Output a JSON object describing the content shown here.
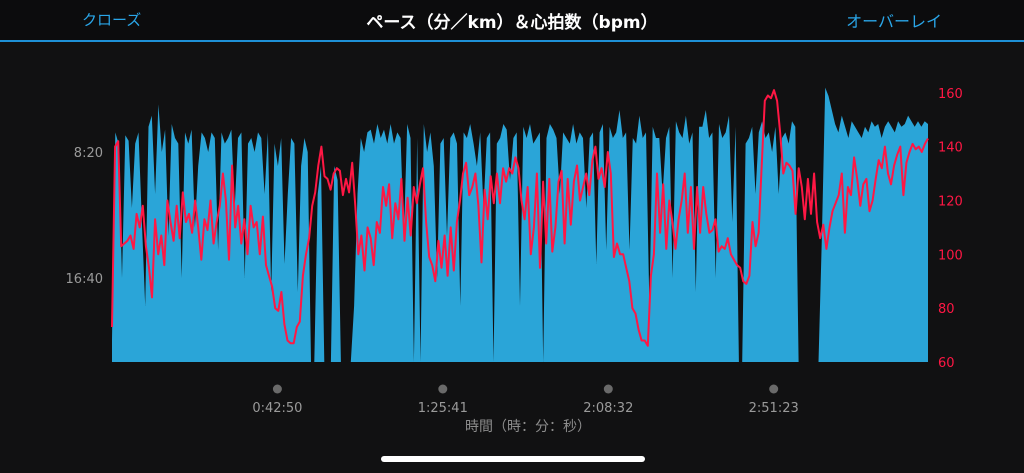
{
  "header": {
    "close_label": "クローズ",
    "title": "ペース（分／km）＆心拍数（bpm）",
    "overlay_label": "オーバーレイ"
  },
  "colors": {
    "pace_fill": "#2aa5d8",
    "heart_rate_line": "#ff1744",
    "accent": "#1e90d6"
  },
  "chart_data": {
    "type": "area",
    "xlabel": "時間（時：分：秒）",
    "x_ticks": [
      "0:42:50",
      "1:25:41",
      "2:08:32",
      "2:51:23"
    ],
    "x_tick_seconds": [
      2570,
      5141,
      7712,
      10283
    ],
    "x_range": [
      0,
      12680
    ],
    "grid": false,
    "y_left": {
      "ticks": [
        "8:20",
        "16:40"
      ],
      "tick_positions": [
        0.75,
        0.3
      ],
      "inverted": true
    },
    "y_right": {
      "ticks": [
        60,
        80,
        100,
        120,
        140,
        160
      ],
      "range": [
        60,
        164
      ]
    },
    "series": [
      {
        "name": "",
        "axis": "left",
        "type": "area",
        "levels": [
          0.08,
          0.82,
          0.78,
          0.3,
          0.81,
          0.79,
          0.55,
          0.78,
          0.82,
          0.5,
          0.2,
          0.84,
          0.88,
          0.6,
          0.92,
          0.75,
          0.83,
          0.45,
          0.85,
          0.8,
          0.78,
          0.3,
          0.82,
          0.78,
          0.83,
          0.48,
          0.7,
          0.82,
          0.8,
          0.75,
          0.82,
          0.8,
          0.4,
          0.82,
          0.78,
          0.8,
          0.83,
          0.55,
          0.8,
          0.82,
          0.3,
          0.78,
          0.8,
          0.75,
          0.82,
          0.8,
          0.6,
          0.82,
          0.25,
          0.78,
          0.7,
          0.8,
          0.35,
          0.6,
          0.8,
          0.78,
          0.25,
          0.7,
          0.8,
          0.75,
          0.0,
          0.0,
          0.6,
          0.7,
          0.0,
          0.0,
          0.0,
          0.7,
          0.65,
          0.0,
          0.0,
          0.0,
          0.0,
          0.2,
          0.6,
          0.8,
          0.75,
          0.82,
          0.83,
          0.78,
          0.85,
          0.8,
          0.83,
          0.78,
          0.85,
          0.78,
          0.82,
          0.8,
          0.45,
          0.85,
          0.8,
          0.0,
          0.8,
          0.0,
          0.85,
          0.75,
          0.82,
          0.7,
          0.3,
          0.78,
          0.8,
          0.45,
          0.8,
          0.82,
          0.78,
          0.2,
          0.82,
          0.8,
          0.85,
          0.78,
          0.7,
          0.82,
          0.55,
          0.8,
          0.82,
          0.0,
          0.78,
          0.8,
          0.85,
          0.83,
          0.65,
          0.8,
          0.82,
          0.2,
          0.84,
          0.8,
          0.85,
          0.78,
          0.8,
          0.82,
          0.0,
          0.8,
          0.85,
          0.83,
          0.8,
          0.6,
          0.82,
          0.8,
          0.78,
          0.85,
          0.78,
          0.82,
          0.8,
          0.55,
          0.8,
          0.82,
          0.35,
          0.82,
          0.85,
          0.4,
          0.84,
          0.8,
          0.82,
          0.9,
          0.8,
          0.82,
          0.4,
          0.8,
          0.78,
          0.88,
          0.8,
          0.82,
          0.2,
          0.84,
          0.8,
          0.8,
          0.6,
          0.8,
          0.84,
          0.3,
          0.86,
          0.82,
          0.8,
          0.88,
          0.78,
          0.82,
          0.25,
          0.84,
          0.84,
          0.9,
          0.8,
          0.82,
          0.3,
          0.85,
          0.8,
          0.82,
          0.88,
          0.5,
          0.84,
          0.0,
          0.0,
          0.78,
          0.8,
          0.84,
          0.6,
          0.82,
          0.86,
          0.8,
          0.82,
          0.75,
          0.84,
          0.6,
          0.8,
          0.82,
          0.78,
          0.86,
          0.84,
          0.0,
          0.0,
          0.0,
          0.0,
          0.0,
          0.0,
          0.0,
          0.45,
          0.98,
          0.95,
          0.9,
          0.85,
          0.82,
          0.88,
          0.84,
          0.8,
          0.86,
          0.84,
          0.82,
          0.8,
          0.84,
          0.82,
          0.86,
          0.84,
          0.85,
          0.8,
          0.84,
          0.86,
          0.84,
          0.82,
          0.86,
          0.84,
          0.85,
          0.88,
          0.86,
          0.84,
          0.86,
          0.84,
          0.86,
          0.85
        ]
      },
      {
        "name": "",
        "axis": "right",
        "type": "line",
        "values": [
          73,
          140,
          142,
          103,
          104,
          105,
          107,
          102,
          115,
          110,
          118,
          103,
          95,
          84,
          113,
          100,
          107,
          96,
          120,
          112,
          105,
          118,
          106,
          123,
          112,
          115,
          108,
          120,
          110,
          98,
          113,
          109,
          120,
          104,
          112,
          118,
          130,
          120,
          98,
          133,
          110,
          118,
          104,
          113,
          100,
          118,
          110,
          112,
          100,
          114,
          96,
          92,
          88,
          80,
          79,
          86,
          74,
          68,
          67,
          67,
          73,
          75,
          92,
          100,
          106,
          118,
          123,
          133,
          140,
          129,
          128,
          124,
          130,
          132,
          131,
          122,
          128,
          123,
          134,
          118,
          100,
          107,
          94,
          110,
          106,
          96,
          112,
          108,
          125,
          118,
          126,
          106,
          119,
          113,
          128,
          105,
          121,
          107,
          125,
          119,
          126,
          132,
          112,
          99,
          96,
          90,
          105,
          95,
          107,
          92,
          110,
          94,
          112,
          120,
          130,
          134,
          122,
          125,
          130,
          118,
          97,
          124,
          113,
          129,
          119,
          130,
          119,
          132,
          127,
          132,
          130,
          136,
          132,
          120,
          113,
          125,
          100,
          110,
          130,
          95,
          127,
          104,
          128,
          101,
          110,
          127,
          131,
          104,
          128,
          111,
          127,
          133,
          120,
          125,
          130,
          122,
          135,
          140,
          128,
          132,
          125,
          138,
          130,
          99,
          104,
          100,
          100,
          95,
          90,
          80,
          78,
          72,
          68,
          68,
          66,
          92,
          100,
          130,
          108,
          126,
          102,
          120,
          112,
          102,
          113,
          120,
          130,
          108,
          125,
          102,
          125,
          108,
          125,
          115,
          108,
          109,
          113,
          101,
          103,
          102,
          106,
          100,
          98,
          96,
          95,
          90,
          89,
          92,
          112,
          103,
          108,
          133,
          157,
          159,
          158,
          161,
          157,
          145,
          130,
          134,
          133,
          131,
          115,
          132,
          125,
          113,
          128,
          115,
          130,
          112,
          106,
          111,
          102,
          110,
          116,
          119,
          122,
          130,
          108,
          125,
          122,
          136,
          128,
          118,
          126,
          128,
          116,
          120,
          128,
          135,
          132,
          140,
          130,
          126,
          133,
          137,
          140,
          122,
          134,
          138,
          141,
          139,
          140,
          138,
          141,
          143
        ]
      }
    ]
  }
}
